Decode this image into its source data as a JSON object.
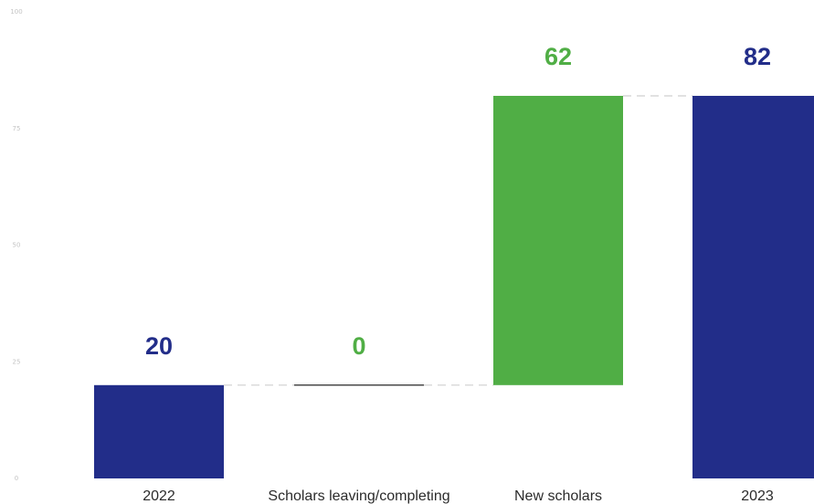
{
  "chart_data": {
    "type": "bar",
    "subtype": "waterfall",
    "categories": [
      "2022",
      "Scholars leaving/completing",
      "New scholars",
      "2023"
    ],
    "values": [
      20,
      0,
      62,
      82
    ],
    "data_labels": [
      "20",
      "0",
      "62",
      "82"
    ],
    "kinds": [
      "total",
      "delta",
      "delta",
      "total"
    ],
    "ylim": [
      0,
      100
    ],
    "yticks": [
      0,
      25,
      50,
      75,
      100
    ],
    "grid": false,
    "colors": {
      "total": "#222d89",
      "increase": "#50ae45",
      "zero_line": "#4a4a4a",
      "connector": "#cfcfcf",
      "axis_text": "#c4c4c4",
      "category_text": "#2b2b2b"
    }
  }
}
